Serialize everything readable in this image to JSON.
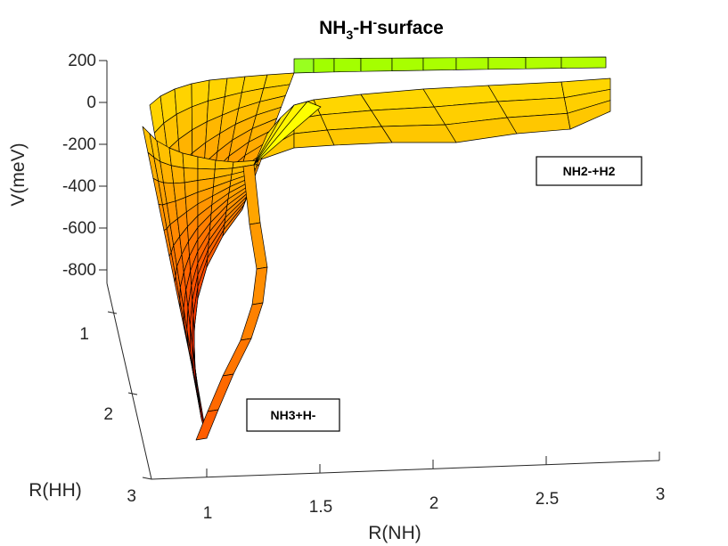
{
  "chart_data": {
    "type": "surface",
    "title": "NH3-H-surface",
    "title_parts": {
      "base1": "NH",
      "sub": "3",
      "mid": "-H",
      "sup": "-",
      "tail": "surface"
    },
    "xlabel": "R(NH)",
    "ylabel": "R(HH)",
    "zlabel": "V(meV)",
    "xlim": [
      1,
      3
    ],
    "ylim": [
      1,
      3
    ],
    "zlim": [
      -800,
      200
    ],
    "x_ticks": [
      "1",
      "1.5",
      "2",
      "2.5",
      "3"
    ],
    "y_ticks": [
      "1",
      "2",
      "3"
    ],
    "z_ticks": [
      "200",
      "0",
      "-200",
      "-400",
      "-600",
      "-800"
    ],
    "colormap": [
      "#ff0000",
      "#ff8000",
      "#ffff00",
      "#80ff00"
    ],
    "annotations": [
      {
        "text": "NH2-+H2"
      },
      {
        "text": "NH3+H-"
      }
    ],
    "surface_summary": {
      "minimum_meV": -750,
      "minimum_location": {
        "R(NH)": 1.0,
        "R(HH)": 2.4
      },
      "asymptote_meV": 0,
      "high_plateau_meV": 200
    }
  }
}
